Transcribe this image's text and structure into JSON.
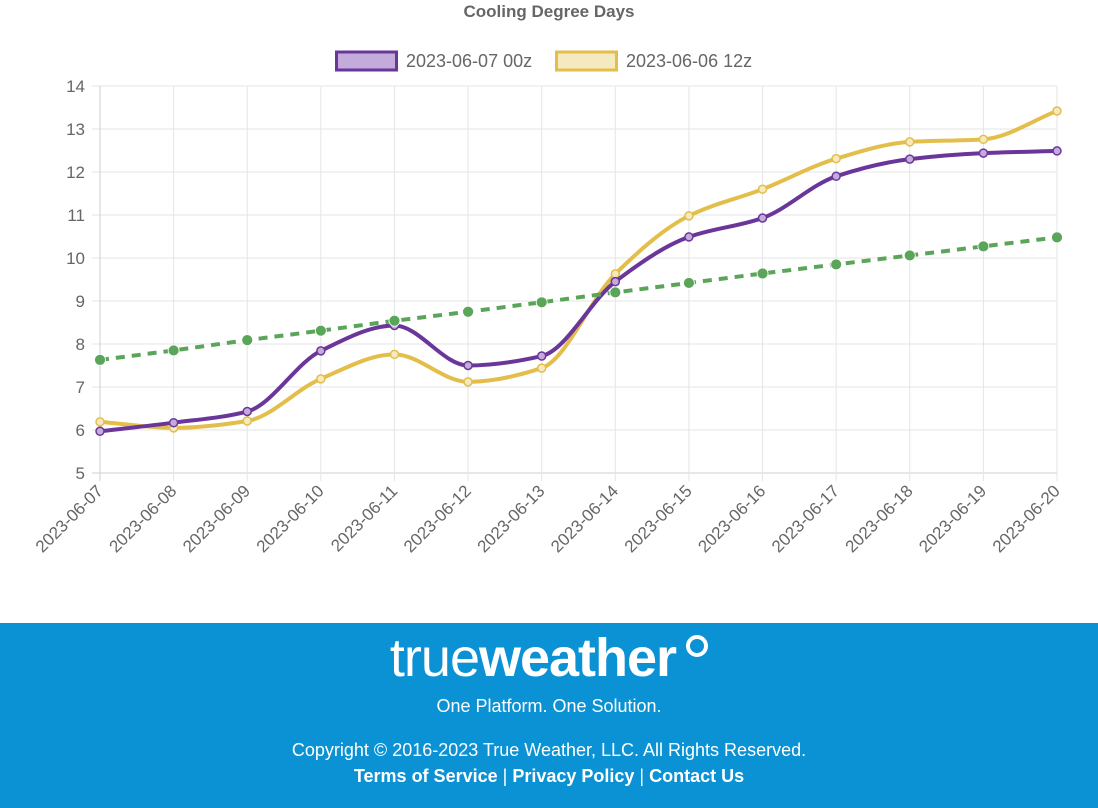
{
  "chart_data": {
    "type": "line",
    "title": "Cooling Degree Days",
    "categories": [
      "2023-06-07",
      "2023-06-08",
      "2023-06-09",
      "2023-06-10",
      "2023-06-11",
      "2023-06-12",
      "2023-06-13",
      "2023-06-14",
      "2023-06-15",
      "2023-06-16",
      "2023-06-17",
      "2023-06-18",
      "2023-06-19",
      "2023-06-20"
    ],
    "ylim": [
      5,
      14
    ],
    "yticks": [
      "5",
      "6",
      "7",
      "8",
      "9",
      "10",
      "11",
      "12",
      "13",
      "14"
    ],
    "grid": true,
    "legend_position": "top",
    "series": [
      {
        "name": "2023-06-07 00z",
        "color": "#6a3699",
        "fill": "#c3acdb",
        "style": "solid",
        "values": [
          5.97,
          6.17,
          6.43,
          7.84,
          8.43,
          7.5,
          7.72,
          9.45,
          10.49,
          10.93,
          11.9,
          12.3,
          12.44,
          12.49
        ]
      },
      {
        "name": "2023-06-06 12z",
        "color": "#e3be4a",
        "fill": "#f5e9c0",
        "style": "solid",
        "values": [
          6.19,
          6.05,
          6.21,
          7.19,
          7.76,
          7.12,
          7.44,
          9.63,
          10.98,
          11.6,
          12.31,
          12.7,
          12.76,
          13.42
        ]
      },
      {
        "name": "",
        "color": "#5ba55b",
        "fill": "#5ba55b",
        "style": "dashed",
        "values": [
          7.63,
          7.85,
          8.09,
          8.31,
          8.54,
          8.75,
          8.97,
          9.2,
          9.42,
          9.64,
          9.85,
          10.06,
          10.27,
          10.48
        ]
      }
    ]
  },
  "footer": {
    "logo_true": "true",
    "logo_weather": "weather",
    "tagline": "One Platform. One Solution.",
    "copyright": "Copyright © 2016-2023 True Weather, LLC. All Rights Reserved.",
    "links": {
      "terms": "Terms of Service",
      "privacy": "Privacy Policy",
      "contact": "Contact Us",
      "separator": "|"
    }
  }
}
